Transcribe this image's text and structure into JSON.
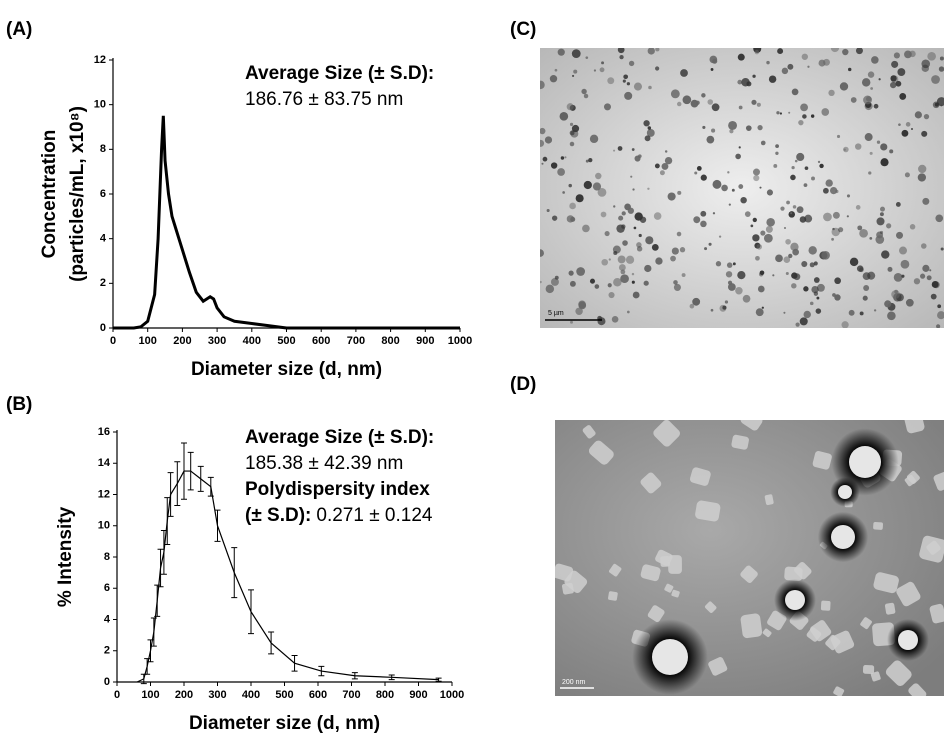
{
  "panel_labels": [
    "(A)",
    "(B)",
    "(C)",
    "(D)"
  ],
  "scale_bars": [
    "5 µm",
    "200 nm"
  ],
  "chart_data": [
    {
      "type": "line",
      "x_label": "Diameter size (d, nm)",
      "y_label": [
        "Concentration",
        "(particles/mL, x10⁸)"
      ],
      "x": [
        0,
        60,
        80,
        100,
        120,
        130,
        140,
        145,
        150,
        160,
        170,
        180,
        190,
        200,
        210,
        220,
        240,
        260,
        280,
        290,
        300,
        320,
        350,
        400,
        450,
        500,
        1000
      ],
      "values": [
        0,
        0,
        0.05,
        0.3,
        1.5,
        4,
        8,
        9.5,
        7.5,
        6,
        5,
        4.5,
        4,
        3.5,
        3,
        2.5,
        1.6,
        1.2,
        1.4,
        1.3,
        0.9,
        0.5,
        0.3,
        0.2,
        0.1,
        0,
        0
      ],
      "color": "#000000",
      "xlim": [
        0,
        1000
      ],
      "xticks": [
        0,
        100,
        200,
        300,
        400,
        500,
        600,
        700,
        800,
        900,
        1000
      ],
      "ylim": [
        0,
        12
      ],
      "yticks": [
        0,
        2,
        4,
        6,
        8,
        10,
        12
      ],
      "annotations": [
        [
          {
            "text": "Average Size (± S.D):",
            "bold": true
          }
        ],
        [
          {
            "text": "186.76 ± 83.75 nm",
            "bold": false
          }
        ]
      ]
    },
    {
      "type": "line",
      "x_label": "Diameter size (d, nm)",
      "y_label": [
        "% Intensity"
      ],
      "x": [
        60,
        80,
        90,
        100,
        110,
        120,
        130,
        140,
        150,
        160,
        180,
        200,
        220,
        250,
        280,
        300,
        350,
        400,
        460,
        530,
        610,
        710,
        820,
        960
      ],
      "values": [
        0,
        0.2,
        1,
        2,
        3.2,
        5.2,
        7.3,
        8.3,
        10.3,
        12,
        12.7,
        13.5,
        13.5,
        13,
        12.5,
        10,
        7,
        4.5,
        2.5,
        1.2,
        0.7,
        0.4,
        0.3,
        0.15
      ],
      "errors": [
        0,
        0.3,
        0.5,
        0.7,
        0.9,
        1,
        1.2,
        1.4,
        1.5,
        1.4,
        1.4,
        1.8,
        1.2,
        0.8,
        0.6,
        1,
        1.6,
        1.4,
        0.7,
        0.5,
        0.3,
        0.2,
        0.15,
        0.1
      ],
      "color": "#000000",
      "xlim": [
        0,
        1000
      ],
      "xticks": [
        0,
        100,
        200,
        300,
        400,
        500,
        600,
        700,
        800,
        900,
        1000
      ],
      "ylim": [
        0,
        16
      ],
      "yticks": [
        0,
        2,
        4,
        6,
        8,
        10,
        12,
        14,
        16
      ],
      "annotations": [
        [
          {
            "text": "Average Size (± S.D):",
            "bold": true
          }
        ],
        [
          {
            "text": "185.38 ± 42.39 nm",
            "bold": false
          }
        ],
        [
          {
            "text": "Polydispersity  index",
            "bold": true
          }
        ],
        [
          {
            "text": "(± S.D):",
            "bold": true
          },
          {
            "text": "0.271 ± 0.124",
            "bold": false
          }
        ]
      ]
    }
  ]
}
